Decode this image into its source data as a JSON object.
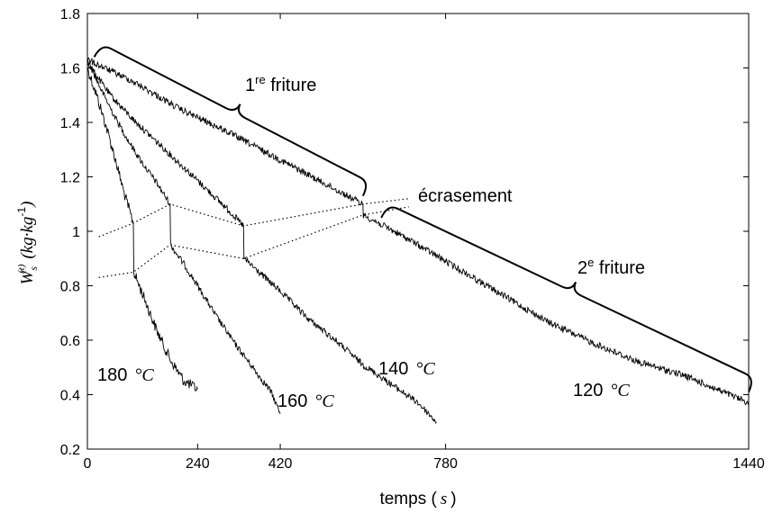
{
  "chart_data": {
    "type": "line",
    "xlabel": {
      "prefix": "temps (",
      "unit": "s",
      "suffix": ")"
    },
    "ylabel": {
      "prefix": "W",
      "sub": "s",
      "sup": "(t)",
      "unit_open": "(kg·kg",
      "unit_sup": "-1",
      "unit_close": ")"
    },
    "xlim": [
      0,
      1440
    ],
    "ylim": [
      0.2,
      1.8
    ],
    "x_ticks": [
      "0",
      "240",
      "420",
      "780",
      "1440"
    ],
    "y_ticks": [
      "0.2",
      "0.4",
      "0.6",
      "0.8",
      "1",
      "1.2",
      "1.4",
      "1.6",
      "1.8"
    ],
    "series": [
      {
        "name": "180 °C",
        "label_num": "180",
        "label_unit": "°C",
        "break_x": 100,
        "x": [
          0,
          20,
          40,
          60,
          80,
          100,
          101,
          120,
          150,
          180,
          210,
          240
        ],
        "y": [
          1.6,
          1.5,
          1.39,
          1.27,
          1.14,
          1.03,
          0.85,
          0.77,
          0.64,
          0.53,
          0.45,
          0.42
        ]
      },
      {
        "name": "160 °C",
        "label_num": "160",
        "label_unit": "°C",
        "break_x": 180,
        "x": [
          0,
          30,
          60,
          90,
          120,
          150,
          180,
          181,
          210,
          240,
          280,
          320,
          360,
          400,
          420
        ],
        "y": [
          1.63,
          1.52,
          1.42,
          1.33,
          1.25,
          1.18,
          1.1,
          0.95,
          0.88,
          0.8,
          0.69,
          0.59,
          0.5,
          0.41,
          0.33
        ]
      },
      {
        "name": "140 °C",
        "label_num": "140",
        "label_unit": "°C",
        "break_x": 340,
        "x": [
          0,
          50,
          100,
          150,
          200,
          250,
          300,
          340,
          341,
          380,
          420,
          480,
          540,
          600,
          660,
          720,
          760
        ],
        "y": [
          1.62,
          1.5,
          1.41,
          1.33,
          1.25,
          1.17,
          1.09,
          1.02,
          0.9,
          0.84,
          0.78,
          0.68,
          0.6,
          0.51,
          0.44,
          0.37,
          0.3
        ]
      },
      {
        "name": "120 °C",
        "label_num": "120",
        "label_unit": "°C",
        "break_x": 600,
        "x": [
          0,
          100,
          200,
          300,
          400,
          500,
          600,
          601,
          700,
          800,
          900,
          1000,
          1100,
          1200,
          1300,
          1440
        ],
        "y": [
          1.63,
          1.55,
          1.45,
          1.37,
          1.28,
          1.19,
          1.1,
          1.06,
          0.97,
          0.87,
          0.77,
          0.67,
          0.59,
          0.52,
          0.47,
          0.37
        ]
      }
    ],
    "annotations": {
      "friture1": {
        "num": "1",
        "sup": "re",
        "text": " friture"
      },
      "friture2": {
        "num": "2",
        "sup": "e",
        "text": " friture"
      },
      "ecrasement": "écrasement"
    }
  }
}
